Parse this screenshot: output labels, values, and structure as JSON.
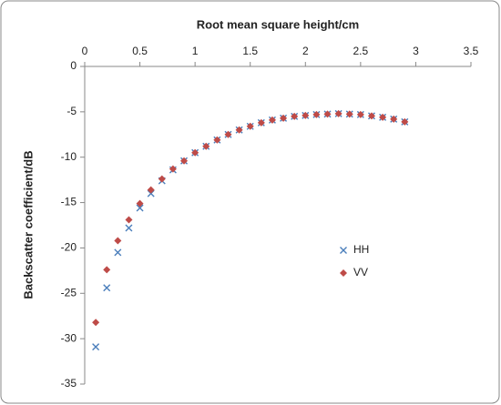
{
  "chart_data": {
    "type": "scatter",
    "x_label": "Root mean square height/cm",
    "y_label": "Backscatter coefficient/dB",
    "x": [
      0.1,
      0.2,
      0.3,
      0.4,
      0.5,
      0.6,
      0.7,
      0.8,
      0.9,
      1.0,
      1.1,
      1.2,
      1.3,
      1.4,
      1.5,
      1.6,
      1.7,
      1.8,
      1.9,
      2.0,
      2.1,
      2.2,
      2.3,
      2.4,
      2.5,
      2.6,
      2.7,
      2.8,
      2.9
    ],
    "series": [
      {
        "name": "HH",
        "color": "#4a7ebb",
        "marker": "x",
        "values": [
          -30.9,
          -24.4,
          -20.5,
          -17.8,
          -15.6,
          -14.0,
          -12.6,
          -11.4,
          -10.4,
          -9.5,
          -8.8,
          -8.1,
          -7.5,
          -7.0,
          -6.6,
          -6.2,
          -5.9,
          -5.7,
          -5.5,
          -5.4,
          -5.3,
          -5.25,
          -5.2,
          -5.25,
          -5.3,
          -5.45,
          -5.6,
          -5.8,
          -6.1
        ]
      },
      {
        "name": "VV",
        "color": "#be4b48",
        "marker": "diamond",
        "values": [
          -28.2,
          -22.4,
          -19.2,
          -16.9,
          -15.1,
          -13.6,
          -12.4,
          -11.3,
          -10.4,
          -9.5,
          -8.8,
          -8.1,
          -7.5,
          -7.0,
          -6.6,
          -6.2,
          -5.9,
          -5.7,
          -5.5,
          -5.4,
          -5.3,
          -5.25,
          -5.2,
          -5.25,
          -5.3,
          -5.45,
          -5.6,
          -5.8,
          -6.1
        ]
      }
    ],
    "xlim": [
      0,
      3.5
    ],
    "xticks": [
      0,
      0.5,
      1,
      1.5,
      2,
      2.5,
      3,
      3.5
    ],
    "ylim": [
      -35,
      0
    ],
    "yticks": [
      0,
      -5,
      -10,
      -15,
      -20,
      -25,
      -30,
      -35
    ],
    "x_axis_position": "top",
    "grid": false,
    "legend_position": "right"
  }
}
